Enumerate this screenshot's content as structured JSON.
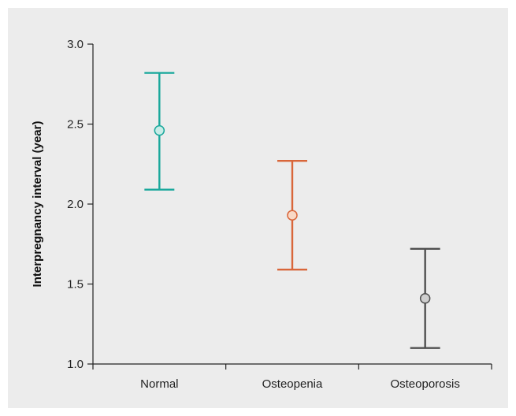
{
  "chart_data": {
    "type": "scatter",
    "error_bars": true,
    "title": "",
    "xlabel": "",
    "ylabel": "Interpregnancy interval (year)",
    "ylim": [
      1.0,
      3.0
    ],
    "yticks": [
      "1.0",
      "1.5",
      "2.0",
      "2.5",
      "3.0"
    ],
    "categories": [
      "Normal",
      "Osteopenia",
      "Osteoporosis"
    ],
    "series": [
      {
        "values": [
          2.46,
          1.93,
          1.41
        ],
        "lower": [
          2.09,
          1.59,
          1.1
        ],
        "upper": [
          2.82,
          2.27,
          1.72
        ]
      }
    ],
    "colors": {
      "Normal": {
        "line": "#1aa89c",
        "fill": "#c8ece7"
      },
      "Osteopenia": {
        "line": "#d9663a",
        "fill": "#f9d9c6"
      },
      "Osteoporosis": {
        "line": "#505050",
        "fill": "#cfcfcf"
      }
    },
    "panel_background": "#ececec",
    "grid": false
  }
}
